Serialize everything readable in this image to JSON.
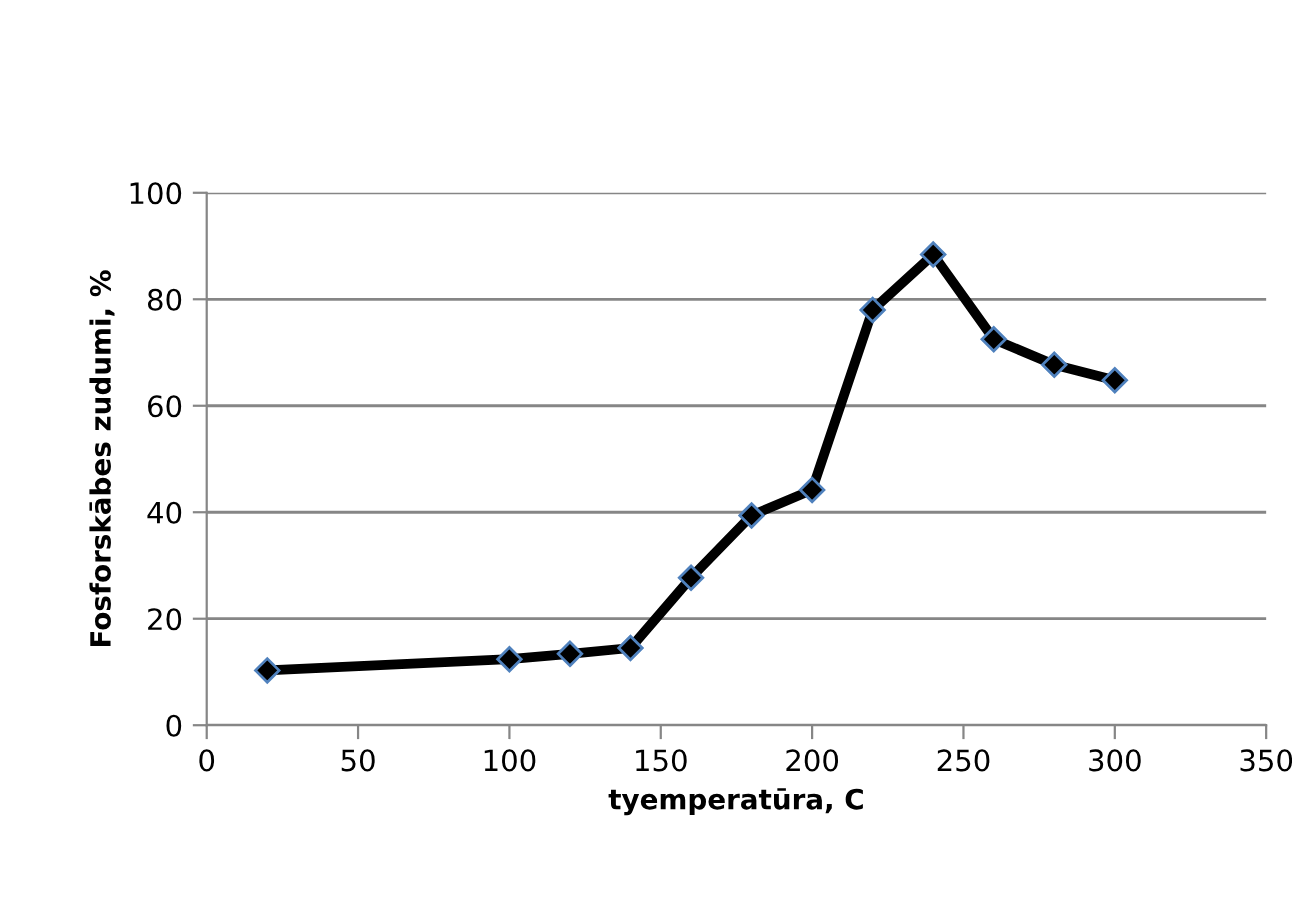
{
  "chart_data": {
    "type": "line",
    "xlabel": "tyemperatūra, C",
    "ylabel": "Fosforskābes zudumi, %",
    "x": [
      20,
      100,
      120,
      140,
      160,
      180,
      200,
      220,
      240,
      260,
      280,
      300
    ],
    "series": [
      {
        "color": "#000000",
        "values": [
          10.3,
          12.4,
          13.4,
          14.5,
          27.7,
          39.4,
          44.2,
          78,
          88.4,
          72.5,
          67.7,
          64.8
        ]
      }
    ],
    "xlim": [
      0,
      350
    ],
    "xticks": [
      0,
      50,
      100,
      150,
      200,
      250,
      300,
      350
    ],
    "ylim": [
      0,
      100
    ],
    "yticks": [
      0,
      20,
      40,
      60,
      80,
      100
    ],
    "grid": "y",
    "legend": false,
    "marker": "diamond",
    "line_style": "solid"
  }
}
